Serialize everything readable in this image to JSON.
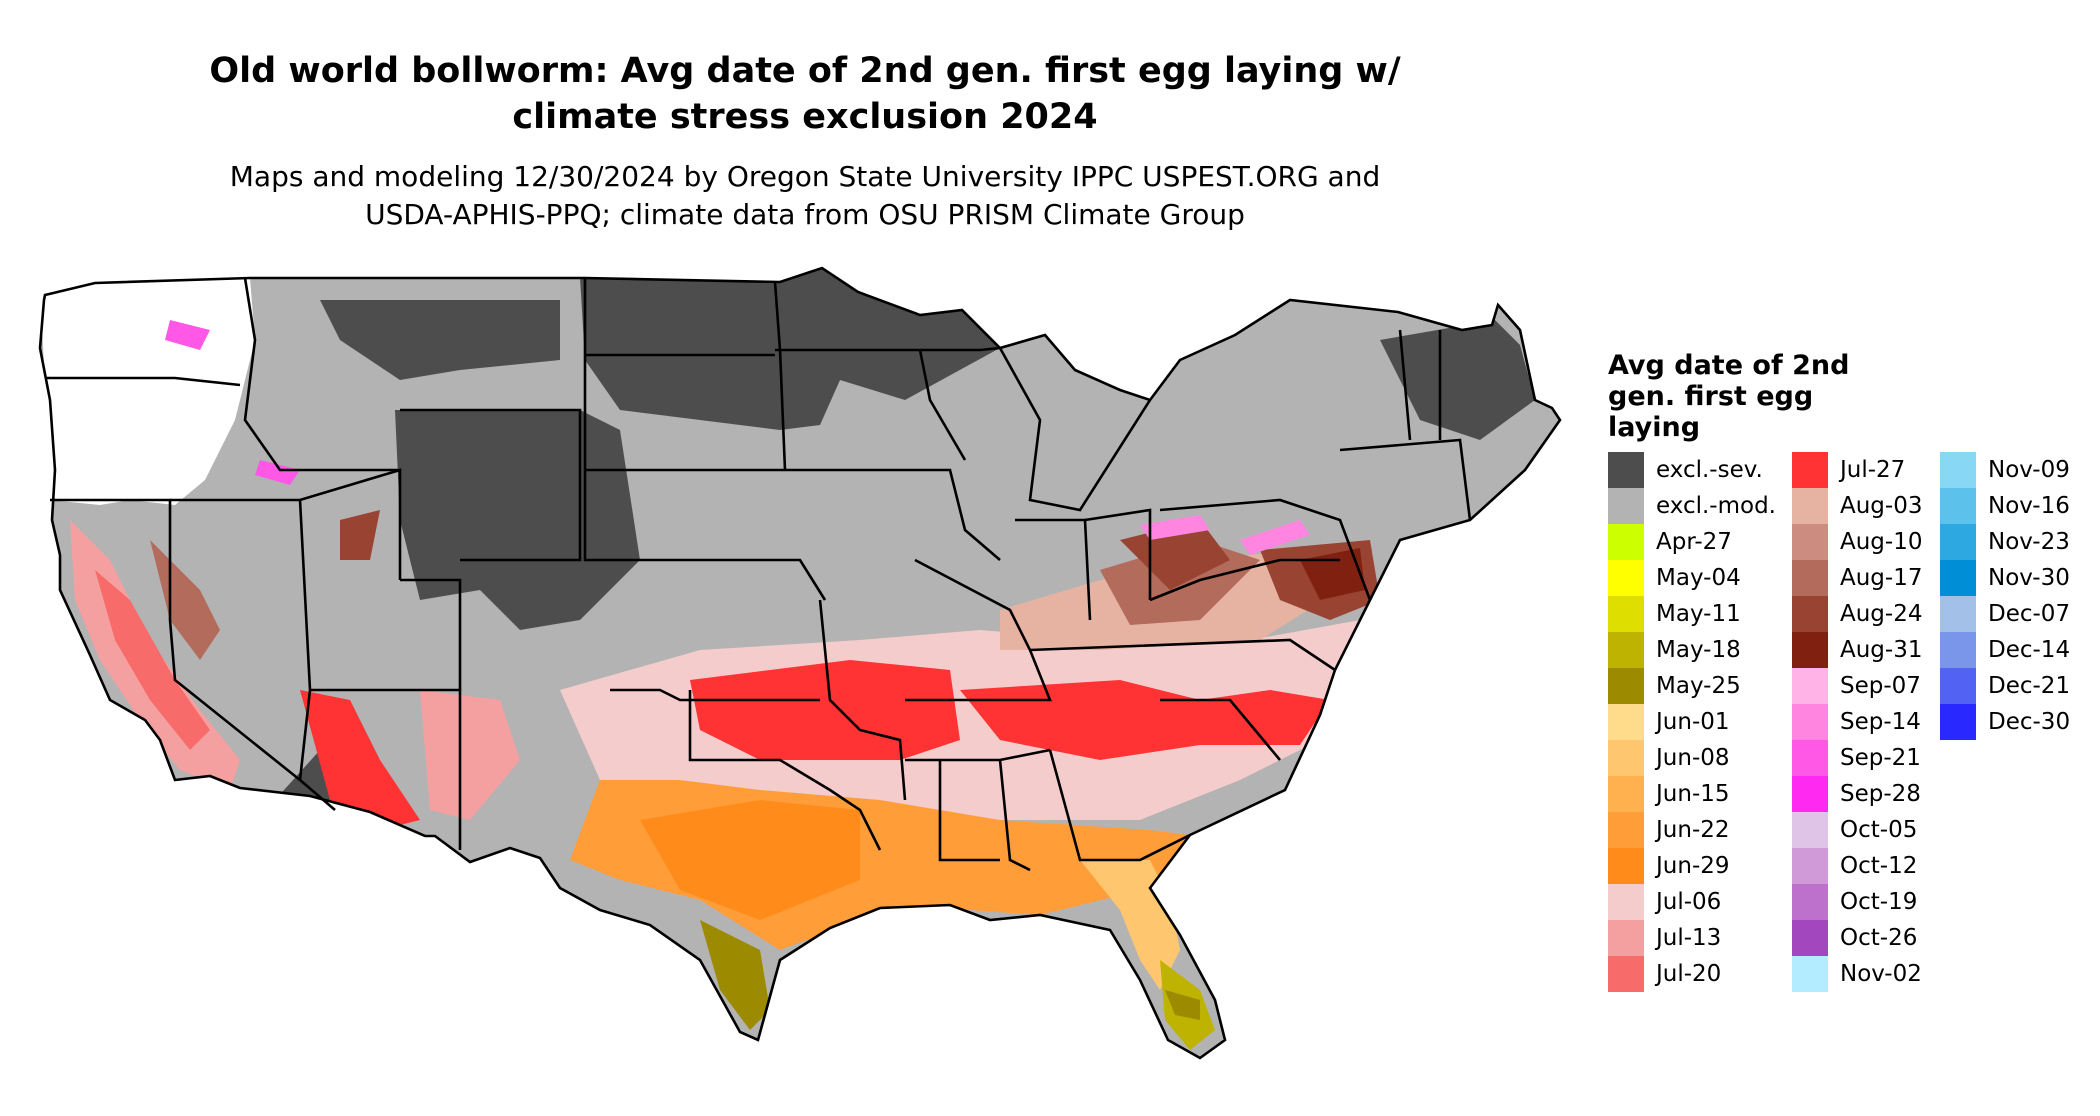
{
  "title": "Old world bollworm: Avg date of 2nd gen. first egg laying w/ climate stress exclusion 2024",
  "title_lines": [
    "Old world bollworm: Avg date of 2nd gen. first egg laying w/",
    "climate stress exclusion 2024"
  ],
  "subtitle_lines": [
    "Maps and modeling 12/30/2024 by Oregon State University IPPC USPEST.ORG and",
    "USDA-APHIS-PPQ; climate data from OSU PRISM Climate Group"
  ],
  "legend": {
    "title_lines": [
      "Avg date of 2nd",
      "gen. first egg",
      "laying"
    ],
    "columns": [
      [
        {
          "label": "excl.-sev.",
          "color": "#4d4d4d"
        },
        {
          "label": "excl.-mod.",
          "color": "#b3b3b3"
        },
        {
          "label": "Apr-27",
          "color": "#ccff00"
        },
        {
          "label": "May-04",
          "color": "#ffff00"
        },
        {
          "label": "May-11",
          "color": "#dede00"
        },
        {
          "label": "May-18",
          "color": "#bdb300"
        },
        {
          "label": "May-25",
          "color": "#9c8a00"
        },
        {
          "label": "Jun-01",
          "color": "#ffdb8c"
        },
        {
          "label": "Jun-08",
          "color": "#ffc670"
        },
        {
          "label": "Jun-15",
          "color": "#ffb04f"
        },
        {
          "label": "Jun-22",
          "color": "#ff9e38"
        },
        {
          "label": "Jun-29",
          "color": "#ff8c1a"
        },
        {
          "label": "Jul-06",
          "color": "#f5cccc"
        },
        {
          "label": "Jul-13",
          "color": "#f5a0a0"
        },
        {
          "label": "Jul-20",
          "color": "#f76b6b"
        }
      ],
      [
        {
          "label": "Jul-27",
          "color": "#ff3333"
        },
        {
          "label": "Aug-03",
          "color": "#e6b3a3"
        },
        {
          "label": "Aug-10",
          "color": "#cc8c80"
        },
        {
          "label": "Aug-17",
          "color": "#b36b5c"
        },
        {
          "label": "Aug-24",
          "color": "#994433"
        },
        {
          "label": "Aug-31",
          "color": "#802010"
        },
        {
          "label": "Sep-07",
          "color": "#ffb3e6"
        },
        {
          "label": "Sep-14",
          "color": "#ff85e0"
        },
        {
          "label": "Sep-21",
          "color": "#ff57e6"
        },
        {
          "label": "Sep-28",
          "color": "#ff29f2"
        },
        {
          "label": "Oct-05",
          "color": "#e0c4e8"
        },
        {
          "label": "Oct-12",
          "color": "#d09ad9"
        },
        {
          "label": "Oct-19",
          "color": "#bd70cc"
        },
        {
          "label": "Oct-26",
          "color": "#a347bf"
        },
        {
          "label": "Nov-02",
          "color": "#b3ecff"
        }
      ],
      [
        {
          "label": "Nov-09",
          "color": "#87d7f5"
        },
        {
          "label": "Nov-16",
          "color": "#5cc1eb"
        },
        {
          "label": "Nov-23",
          "color": "#2ea8e0"
        },
        {
          "label": "Nov-30",
          "color": "#008fd6"
        },
        {
          "label": "Dec-07",
          "color": "#a3c1e8"
        },
        {
          "label": "Dec-14",
          "color": "#7a96eb"
        },
        {
          "label": "Dec-21",
          "color": "#5262f2"
        },
        {
          "label": "Dec-30",
          "color": "#2929ff"
        }
      ]
    ]
  }
}
